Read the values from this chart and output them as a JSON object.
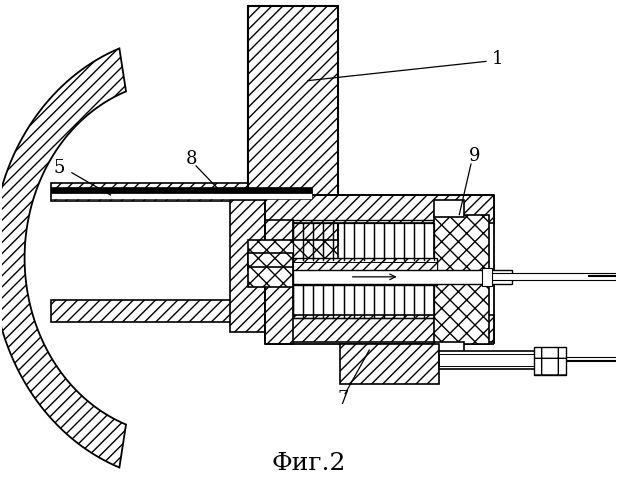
{
  "title": "Фиг.2",
  "title_fontsize": 18,
  "background": "#ffffff",
  "label_fontsize": 13
}
